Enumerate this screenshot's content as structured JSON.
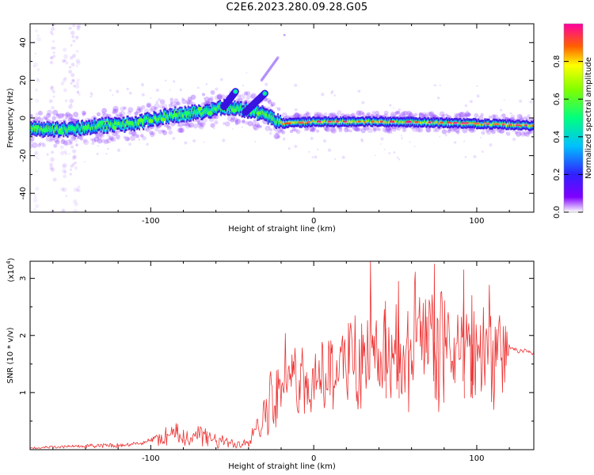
{
  "title": "C2E6.2023.280.09.28.G05",
  "chart_data": [
    {
      "type": "heatmap",
      "name": "spectrogram",
      "xlabel": "Height of straight line (km)",
      "ylabel": "Frequency (Hz)",
      "xlim": [
        -174,
        135
      ],
      "ylim": [
        -50,
        50
      ],
      "xticks": [
        -100,
        0,
        100
      ],
      "yticks": [
        -40,
        -20,
        0,
        20,
        40
      ],
      "colorbar": {
        "label": "Normalized spectral amplitude",
        "range": [
          0.0,
          1.0
        ],
        "ticks": [
          "0.0",
          "0.2",
          "0.4",
          "0.6",
          "0.8"
        ]
      },
      "ridge": [
        {
          "x": -172,
          "y": -6
        },
        {
          "x": -150,
          "y": -6
        },
        {
          "x": -130,
          "y": -4
        },
        {
          "x": -110,
          "y": -3
        },
        {
          "x": -90,
          "y": 1
        },
        {
          "x": -70,
          "y": 3
        },
        {
          "x": -55,
          "y": 6
        },
        {
          "x": -40,
          "y": 4
        },
        {
          "x": -30,
          "y": 2
        },
        {
          "x": -20,
          "y": -3
        },
        {
          "x": 0,
          "y": -2
        },
        {
          "x": 50,
          "y": -2
        },
        {
          "x": 100,
          "y": -3
        },
        {
          "x": 135,
          "y": -4
        }
      ],
      "branches": [
        {
          "x": [
            -55,
            -48
          ],
          "y": [
            6,
            14
          ]
        },
        {
          "x": [
            -42,
            -30
          ],
          "y": [
            3,
            13
          ]
        },
        {
          "x": [
            -32,
            -22
          ],
          "y": [
            20,
            32
          ]
        }
      ]
    },
    {
      "type": "line",
      "name": "snr",
      "xlabel": "Height of straight line (km)",
      "ylabel": "SNR (10 * v/v)",
      "yscale_label": "(x10",
      "yscale_exp": "4",
      "xlim": [
        -174,
        135
      ],
      "ylim": [
        0,
        3.3
      ],
      "xticks": [
        -100,
        0,
        100
      ],
      "yticks": [
        1,
        2,
        3
      ],
      "color": "#ee3333",
      "envelope": [
        {
          "x": -174,
          "y": 0.03
        },
        {
          "x": -120,
          "y": 0.08
        },
        {
          "x": -100,
          "y": 0.15
        },
        {
          "x": -90,
          "y": 0.25
        },
        {
          "x": -70,
          "y": 0.25
        },
        {
          "x": -55,
          "y": 0.1
        },
        {
          "x": -40,
          "y": 0.15
        },
        {
          "x": -35,
          "y": 0.45
        },
        {
          "x": -25,
          "y": 0.9
        },
        {
          "x": -10,
          "y": 1.2
        },
        {
          "x": 10,
          "y": 1.4
        },
        {
          "x": 40,
          "y": 1.6
        },
        {
          "x": 60,
          "y": 1.7
        },
        {
          "x": 90,
          "y": 1.7
        },
        {
          "x": 118,
          "y": 1.6
        },
        {
          "x": 120,
          "y": 1.75
        },
        {
          "x": 135,
          "y": 1.7
        }
      ],
      "noise_amplitude": [
        {
          "x": -174,
          "y": 0.02
        },
        {
          "x": -100,
          "y": 0.05
        },
        {
          "x": -90,
          "y": 0.25
        },
        {
          "x": -60,
          "y": 0.15
        },
        {
          "x": -40,
          "y": 0.1
        },
        {
          "x": -30,
          "y": 0.5
        },
        {
          "x": 0,
          "y": 0.7
        },
        {
          "x": 40,
          "y": 0.9
        },
        {
          "x": 80,
          "y": 1.2
        },
        {
          "x": 118,
          "y": 0.9
        },
        {
          "x": 120,
          "y": 0.05
        },
        {
          "x": 135,
          "y": 0.05
        }
      ]
    }
  ]
}
